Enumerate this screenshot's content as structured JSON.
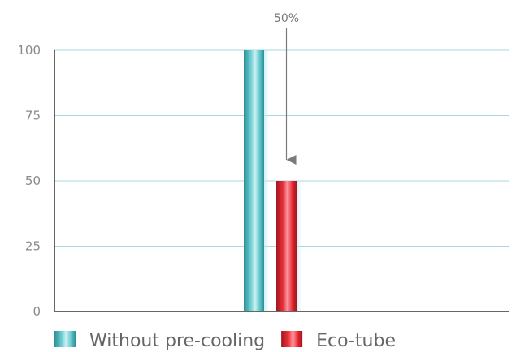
{
  "chart_data": {
    "type": "bar",
    "categories": [
      ""
    ],
    "series": [
      {
        "name": "Without pre-cooling",
        "values": [
          100
        ],
        "color": "#3aa8ad"
      },
      {
        "name": "Eco-tube",
        "values": [
          50
        ],
        "color": "#e0232f"
      }
    ],
    "yticks": [
      "0",
      "25",
      "50",
      "75",
      "100"
    ],
    "ylim": [
      0,
      100
    ],
    "grid": true,
    "legend_position": "bottom-left",
    "annotation": {
      "text": "50%",
      "points_to": "Eco-tube"
    }
  }
}
